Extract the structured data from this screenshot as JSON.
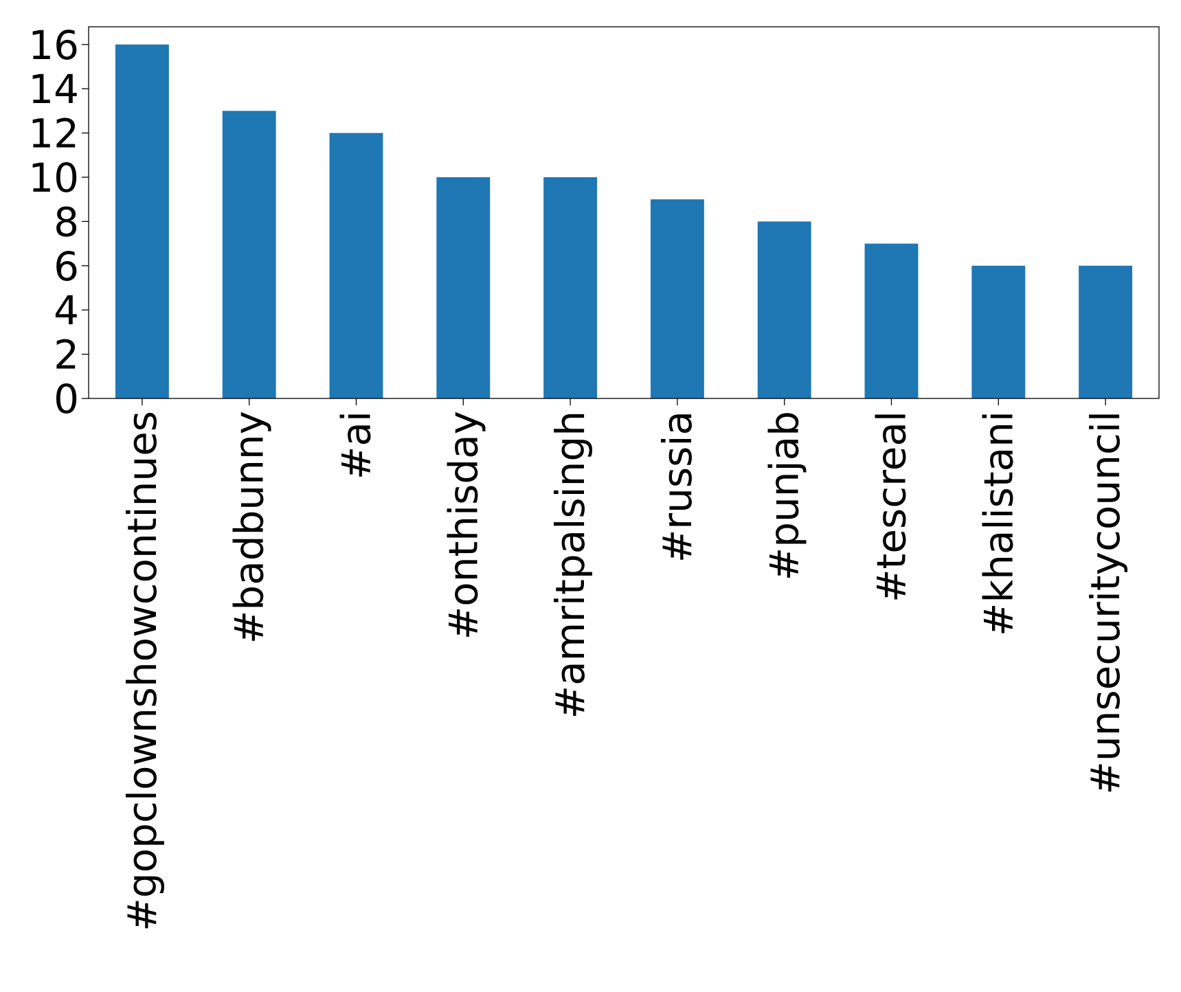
{
  "chart_data": {
    "type": "bar",
    "title": "",
    "xlabel": "",
    "ylabel": "",
    "categories": [
      "#gopclownshowcontinues",
      "#badbunny",
      "#ai",
      "#onthisday",
      "#amritpalsingh",
      "#russia",
      "#punjab",
      "#tescreal",
      "#khalistani",
      "#unsecuritycouncil"
    ],
    "values": [
      16,
      13,
      12,
      10,
      10,
      9,
      8,
      7,
      6,
      6
    ],
    "ylim": [
      0,
      16.8
    ],
    "yticks": [
      0,
      2,
      4,
      6,
      8,
      10,
      12,
      14,
      16
    ],
    "grid": false,
    "legend": "none",
    "bar_color": "#1f77b4"
  }
}
